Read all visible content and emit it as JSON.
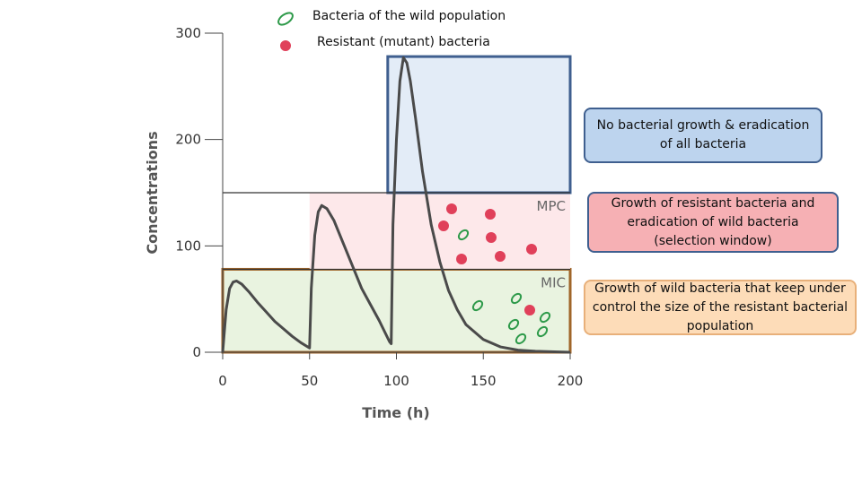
{
  "chart_data": {
    "type": "line",
    "x_label": "Time (h)",
    "y_label": "Concentrations",
    "legend": [
      "Bacteria of the wild population",
      "Resistant (mutant) bacteria"
    ],
    "x": [
      0,
      2,
      4,
      6,
      8,
      11,
      15,
      20,
      25,
      30,
      35,
      40,
      45,
      50,
      51,
      53,
      55,
      57,
      60,
      64,
      70,
      75,
      80,
      85,
      90,
      96,
      97,
      98,
      100,
      102,
      104,
      106,
      108,
      111,
      115,
      120,
      125,
      130,
      135,
      140,
      150,
      160,
      170,
      180,
      200
    ],
    "series": [
      {
        "color": "#4a4a4a",
        "values": [
          0,
          40,
          60,
          66,
          67,
          64,
          57,
          47,
          38,
          29,
          22,
          15,
          9,
          4,
          60,
          110,
          132,
          138,
          135,
          124,
          100,
          80,
          60,
          45,
          30,
          10,
          8,
          120,
          200,
          255,
          277,
          272,
          255,
          220,
          170,
          120,
          85,
          58,
          40,
          26,
          12,
          5,
          2,
          1,
          0
        ]
      }
    ],
    "xlim": [
      0,
      200
    ],
    "ylim": [
      0,
      300
    ],
    "xticks": [
      0,
      50,
      100,
      150,
      200
    ],
    "yticks": [
      0,
      100,
      200,
      300
    ],
    "thresholds": [
      {
        "label": "MIC",
        "value": 78
      },
      {
        "label": "MPC",
        "value": 150
      }
    ],
    "zones": [
      {
        "x": [
          0,
          200
        ],
        "y": [
          0,
          78
        ],
        "fill": "#e9f3e0",
        "border": "#a0662a",
        "text": "Growth of wild bacteria that keep under control the size of the resistant bacterial population",
        "box_color": "#fddcb8"
      },
      {
        "x": [
          50,
          200
        ],
        "y": [
          78,
          150
        ],
        "fill": "#fde8ea",
        "border": "none",
        "text": "Growth of resistant bacteria and eradication of wild bacteria (selection window)",
        "box_color": "#f6b0b4"
      },
      {
        "x": [
          95,
          200
        ],
        "y": [
          150,
          278
        ],
        "fill": "#e3ecf7",
        "border": "#3f5f8f",
        "text": "No bacterial growth & eradication of all bacteria",
        "box_color": "#bdd4ee"
      }
    ]
  }
}
